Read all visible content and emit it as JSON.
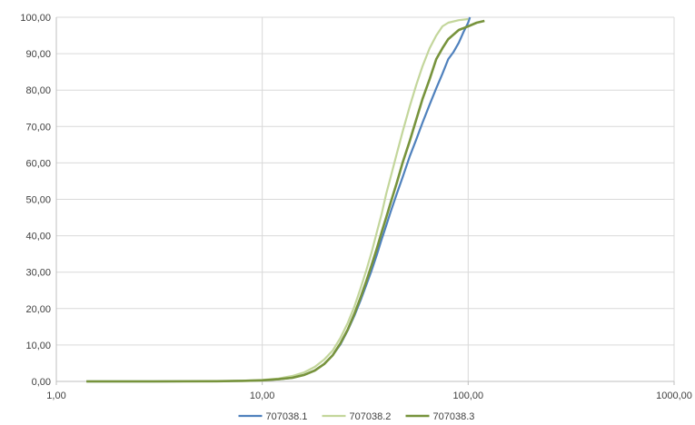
{
  "chart_data": {
    "type": "line",
    "x_scale": "log",
    "xlim": [
      1,
      1000
    ],
    "ylim": [
      0,
      100
    ],
    "x_ticks": [
      1,
      10,
      100,
      1000
    ],
    "x_tick_labels": [
      "1,00",
      "10,00",
      "100,00",
      "1000,00"
    ],
    "y_ticks": [
      0,
      10,
      20,
      30,
      40,
      50,
      60,
      70,
      80,
      90,
      100
    ],
    "y_tick_labels": [
      "0,00",
      "10,00",
      "20,00",
      "30,00",
      "40,00",
      "50,00",
      "60,00",
      "70,00",
      "80,00",
      "90,00",
      "100,00"
    ],
    "grid": true,
    "legend": "bottom",
    "title": "",
    "xlabel": "",
    "ylabel": "",
    "series": [
      {
        "name": "707038.1",
        "color": "#4f81bd",
        "x": [
          1.4,
          3,
          6,
          8,
          10,
          12,
          14,
          16,
          18,
          20,
          22,
          24,
          26,
          28,
          30,
          32,
          34,
          36,
          38,
          40,
          42,
          45,
          48,
          52,
          56,
          60,
          65,
          70,
          75,
          80,
          85,
          90,
          95,
          100,
          102
        ],
        "y": [
          0,
          0,
          0.05,
          0.15,
          0.3,
          0.6,
          1.0,
          1.8,
          3.0,
          4.8,
          7.2,
          10.2,
          14.0,
          18.0,
          22.2,
          26.5,
          30.5,
          34.8,
          39.0,
          42.8,
          46.5,
          51.5,
          56.0,
          61.8,
          66.5,
          71.0,
          76.0,
          80.5,
          84.5,
          88.5,
          90.5,
          93.0,
          96.0,
          98.5,
          100
        ]
      },
      {
        "name": "707038.2",
        "color": "#c3d69b",
        "x": [
          1.4,
          3,
          6,
          8,
          10,
          12,
          14,
          16,
          18,
          20,
          22,
          24,
          26,
          28,
          30,
          32,
          34,
          36,
          38,
          40,
          42,
          45,
          48,
          52,
          56,
          60,
          65,
          70,
          75,
          80,
          90,
          100
        ],
        "y": [
          0,
          0,
          0.05,
          0.2,
          0.4,
          0.8,
          1.5,
          2.5,
          4.0,
          6.0,
          8.5,
          12.0,
          16.0,
          20.5,
          25.5,
          30.5,
          35.5,
          41.0,
          46.0,
          51.5,
          56.0,
          62.5,
          68.5,
          75.5,
          81.5,
          86.5,
          91.5,
          95.0,
          97.5,
          98.5,
          99.2,
          99.5
        ]
      },
      {
        "name": "707038.3",
        "color": "#77933c",
        "x": [
          1.4,
          3,
          6,
          8,
          10,
          12,
          14,
          16,
          18,
          20,
          22,
          24,
          26,
          28,
          30,
          32,
          34,
          36,
          38,
          40,
          42,
          45,
          48,
          52,
          56,
          60,
          65,
          70,
          75,
          80,
          90,
          100,
          110,
          120
        ],
        "y": [
          0,
          0,
          0.05,
          0.15,
          0.3,
          0.6,
          1.0,
          1.8,
          3.0,
          4.8,
          7.2,
          10.5,
          14.2,
          18.5,
          23.0,
          27.5,
          32.0,
          36.5,
          41.0,
          45.0,
          49.0,
          54.5,
          60.0,
          66.0,
          72.0,
          77.5,
          83.0,
          88.5,
          91.5,
          94.0,
          96.5,
          97.5,
          98.5,
          99.0
        ]
      }
    ]
  }
}
